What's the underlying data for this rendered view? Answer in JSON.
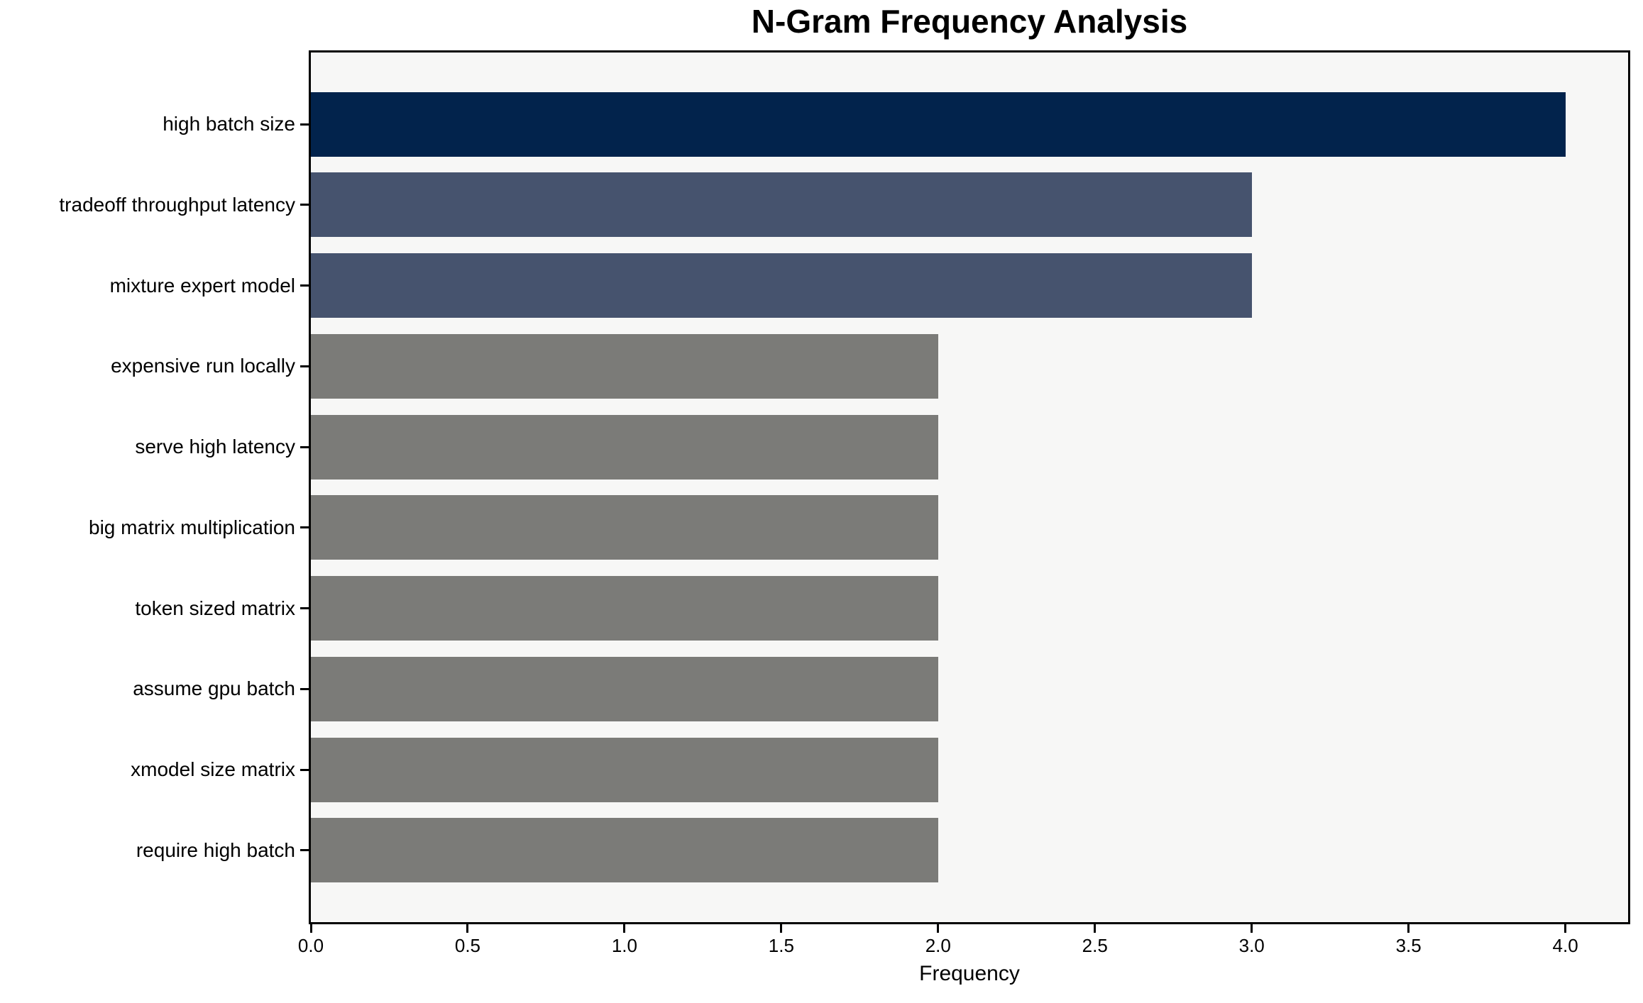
{
  "chart_data": {
    "type": "bar",
    "orientation": "horizontal",
    "title": "N-Gram Frequency Analysis",
    "xlabel": "Frequency",
    "ylabel": "",
    "categories": [
      "high batch size",
      "tradeoff throughput latency",
      "mixture expert model",
      "expensive run locally",
      "serve high latency",
      "big matrix multiplication",
      "token sized matrix",
      "assume gpu batch",
      "xmodel size matrix",
      "require high batch"
    ],
    "values": [
      4,
      3,
      3,
      2,
      2,
      2,
      2,
      2,
      2,
      2
    ],
    "bar_colors": [
      "#02234c",
      "#46536e",
      "#46536e",
      "#7b7b78",
      "#7b7b78",
      "#7b7b78",
      "#7b7b78",
      "#7b7b78",
      "#7b7b78",
      "#7b7b78"
    ],
    "xlim": [
      0,
      4.2
    ],
    "xticks": [
      0.0,
      0.5,
      1.0,
      1.5,
      2.0,
      2.5,
      3.0,
      3.5,
      4.0
    ],
    "xtick_labels": [
      "0.0",
      "0.5",
      "1.0",
      "1.5",
      "2.0",
      "2.5",
      "3.0",
      "3.5",
      "4.0"
    ],
    "grid": false,
    "legend_position": "none",
    "plot_background": "#f7f7f6",
    "figure_background": "#ffffff",
    "spine_color": "#000000"
  }
}
